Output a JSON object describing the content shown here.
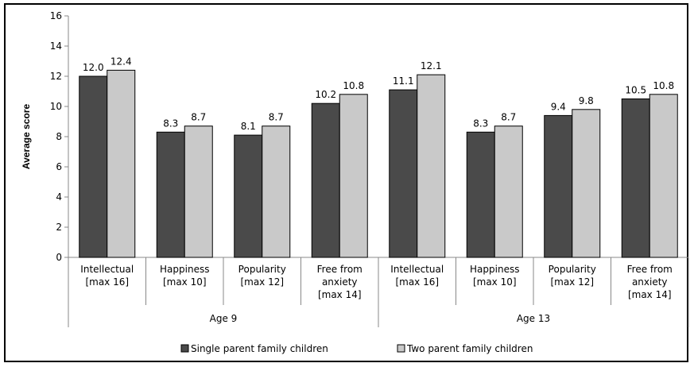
{
  "chart_data": {
    "type": "bar",
    "ylabel": "Average score",
    "ylim": [
      0,
      16
    ],
    "yticks": [
      0,
      2,
      4,
      6,
      8,
      10,
      12,
      14,
      16
    ],
    "groups": [
      {
        "label": "Age 9",
        "categories": [
          [
            "Intellectual",
            "[max 16]"
          ],
          [
            "Happiness",
            "[max 10]"
          ],
          [
            "Popularity",
            "[max 12]"
          ],
          [
            "Free from",
            "anxiety",
            "[max 14]"
          ]
        ]
      },
      {
        "label": "Age 13",
        "categories": [
          [
            "Intellectual",
            "[max 16]"
          ],
          [
            "Happiness",
            "[max 10]"
          ],
          [
            "Popularity",
            "[max 12]"
          ],
          [
            "Free from",
            "anxiety",
            "[max 14]"
          ]
        ]
      }
    ],
    "series": [
      {
        "name": "Single parent family children",
        "color": "#4a4a4a",
        "values": [
          12.0,
          8.3,
          8.1,
          10.2,
          11.1,
          8.3,
          9.4,
          10.5
        ],
        "labels": [
          "12.0",
          "8.3",
          "8.1",
          "10.2",
          "11.1",
          "8.3",
          "9.4",
          "10.5"
        ]
      },
      {
        "name": "Two parent family children",
        "color": "#c9c9c9",
        "values": [
          12.4,
          8.7,
          8.7,
          10.8,
          12.1,
          8.7,
          9.8,
          10.8
        ],
        "labels": [
          "12.4",
          "8.7",
          "8.7",
          "10.8",
          "12.1",
          "8.7",
          "9.8",
          "10.8"
        ]
      }
    ],
    "grid": false,
    "legend": "bottom"
  }
}
